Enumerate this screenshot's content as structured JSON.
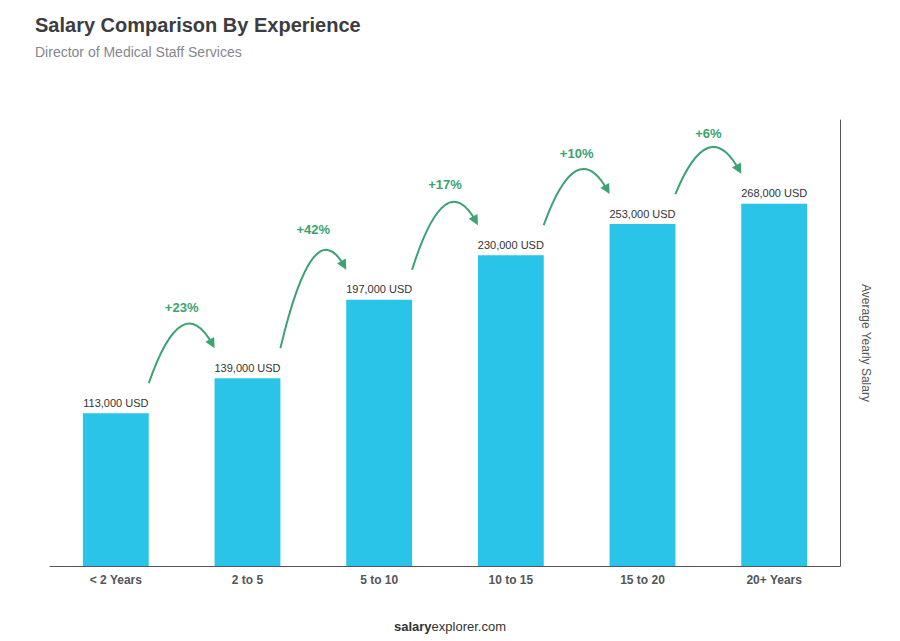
{
  "chart_data": {
    "type": "bar",
    "title": "Salary Comparison By Experience",
    "subtitle": "Director of Medical Staff Services",
    "categories": [
      "< 2 Years",
      "2 to 5",
      "5 to 10",
      "10 to 15",
      "15 to 20",
      "20+ Years"
    ],
    "values": [
      113000,
      139000,
      197000,
      230000,
      253000,
      268000
    ],
    "value_labels": [
      "113,000 USD",
      "139,000 USD",
      "197,000 USD",
      "230,000 USD",
      "253,000 USD",
      "268,000 USD"
    ],
    "data_labels": true,
    "color": "#29C4E8",
    "ylabel": "Average Yearly Salary",
    "ylim": [
      0,
      330000
    ],
    "annotations": [
      "+23%",
      "+42%",
      "+17%",
      "+10%",
      "+6%"
    ],
    "footer": [
      "salary",
      "explorer.com"
    ],
    "grid": false,
    "tick_labels": "x"
  }
}
